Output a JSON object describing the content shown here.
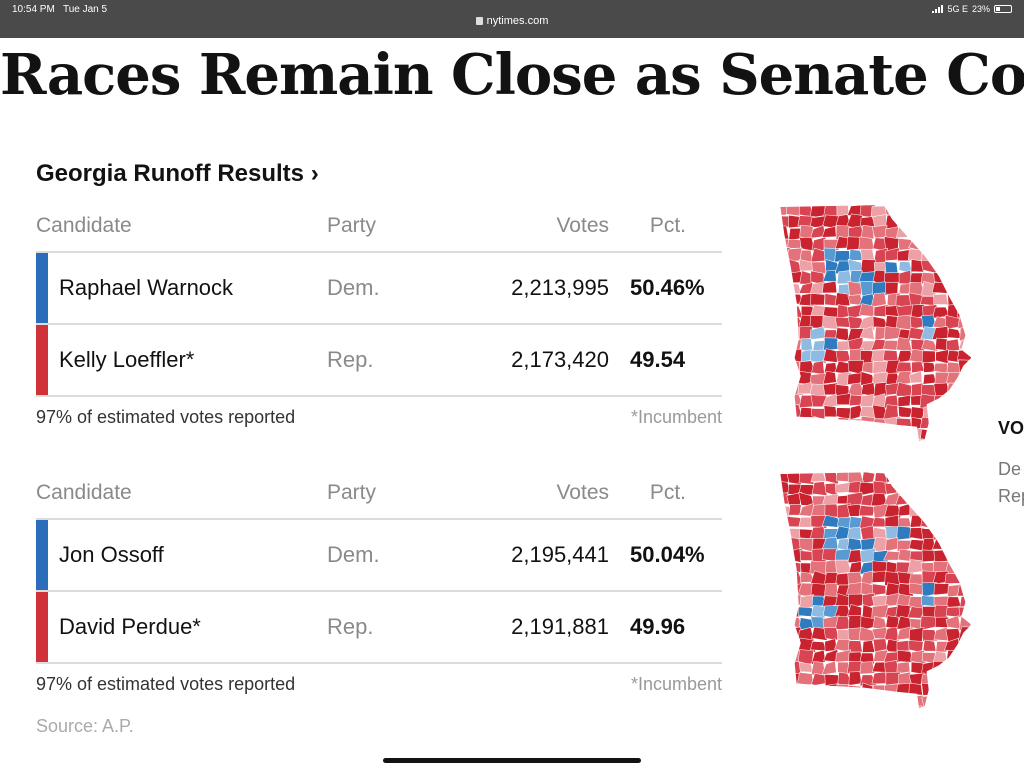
{
  "status_bar": {
    "time": "10:54 PM",
    "date": "Tue Jan 5",
    "url": "nytimes.com",
    "network": "5G E",
    "battery": "23%"
  },
  "headline": "Races Remain Close as Senate Control H",
  "section_title": "Georgia Runoff Results ›",
  "columns": {
    "candidate": "Candidate",
    "party": "Party",
    "votes": "Votes",
    "pct": "Pct."
  },
  "races": [
    {
      "candidates": [
        {
          "name": "Raphael Warnock",
          "party": "Dem.",
          "votes": "2,213,995",
          "pct": "50.46%",
          "color": "#2a6ebb"
        },
        {
          "name": "Kelly Loeffler*",
          "party": "Rep.",
          "votes": "2,173,420",
          "pct": "49.54",
          "color": "#d0323a"
        }
      ],
      "reported": "97% of estimated votes reported",
      "incumbent_note": "*Incumbent"
    },
    {
      "candidates": [
        {
          "name": "Jon Ossoff",
          "party": "Dem.",
          "votes": "2,195,441",
          "pct": "50.04%",
          "color": "#2a6ebb"
        },
        {
          "name": "David Perdue*",
          "party": "Rep.",
          "votes": "2,191,881",
          "pct": "49.96",
          "color": "#d0323a"
        }
      ],
      "reported": "97% of estimated votes reported",
      "incumbent_note": "*Incumbent"
    }
  ],
  "source": "Source: A.P.",
  "side_panel": {
    "heading": "VO",
    "line1": "De",
    "line2": "Rep"
  },
  "colors": {
    "dem": "#2a6ebb",
    "rep": "#d0323a",
    "map_palette": [
      "#c9232f",
      "#d94452",
      "#e3727a",
      "#eda0a5",
      "#2f7bbf",
      "#5a9ad2",
      "#8fbbe3"
    ]
  },
  "icons": {
    "lock": "lock-icon",
    "signal": "signal-icon",
    "battery": "battery-icon"
  }
}
